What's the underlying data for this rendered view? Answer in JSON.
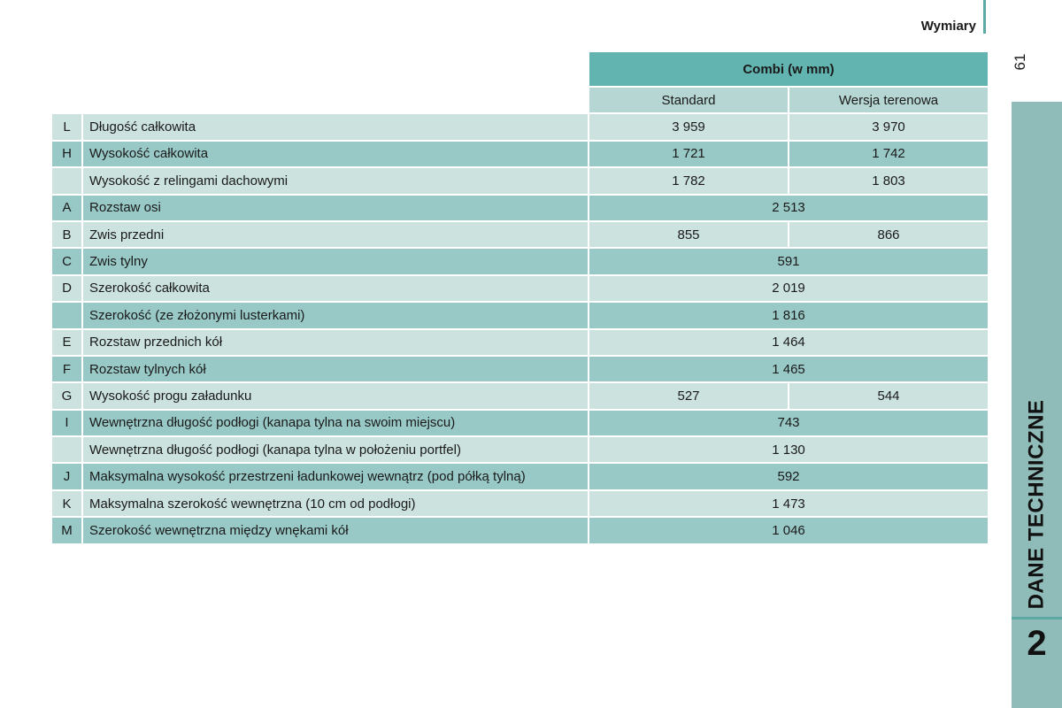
{
  "header": {
    "section_title": "Wymiary",
    "page_number": "61"
  },
  "side_tab": {
    "chapter_title": "DANE TECHNICZNE",
    "chapter_number": "2"
  },
  "table": {
    "group_header": "Combi  (w mm)",
    "sub_headers": [
      "Standard",
      "Wersja terenowa"
    ],
    "rows": [
      {
        "letter": "L",
        "label": "Długość całkowita",
        "values": [
          "3 959",
          "3 970"
        ]
      },
      {
        "letter": "H",
        "label": "Wysokość całkowita",
        "values": [
          "1 721",
          "1 742"
        ]
      },
      {
        "letter": "",
        "label": "Wysokość z relingami dachowymi",
        "values": [
          "1 782",
          "1 803"
        ]
      },
      {
        "letter": "A",
        "label": "Rozstaw osi",
        "values": [
          "2 513"
        ]
      },
      {
        "letter": "B",
        "label": "Zwis przedni",
        "values": [
          "855",
          "866"
        ]
      },
      {
        "letter": "C",
        "label": "Zwis tylny",
        "values": [
          "591"
        ]
      },
      {
        "letter": "D",
        "label": "Szerokość całkowita",
        "values": [
          "2 019"
        ]
      },
      {
        "letter": "",
        "label": "Szerokość (ze złożonymi lusterkami)",
        "values": [
          "1 816"
        ]
      },
      {
        "letter": "E",
        "label": "Rozstaw przednich kół",
        "values": [
          "1 464"
        ]
      },
      {
        "letter": "F",
        "label": "Rozstaw tylnych kół",
        "values": [
          "1 465"
        ]
      },
      {
        "letter": "G",
        "label": "Wysokość progu załadunku",
        "values": [
          "527",
          "544"
        ]
      },
      {
        "letter": "I",
        "label": "Wewnętrzna długość podłogi (kanapa tylna na swoim miejscu)",
        "values": [
          "743"
        ]
      },
      {
        "letter": "",
        "label": "Wewnętrzna długość podłogi (kanapa tylna w położeniu portfel)",
        "values": [
          "1 130"
        ]
      },
      {
        "letter": "J",
        "label": "Maksymalna wysokość przestrzeni ładunkowej wewnątrz (pod półką tylną)",
        "values": [
          "592"
        ]
      },
      {
        "letter": "K",
        "label": "Maksymalna szerokość wewnętrzna (10 cm od podłogi)",
        "values": [
          "1 473"
        ]
      },
      {
        "letter": "M",
        "label": "Szerokość wewnętrzna między wnękami kół",
        "values": [
          "1 046"
        ]
      }
    ]
  }
}
